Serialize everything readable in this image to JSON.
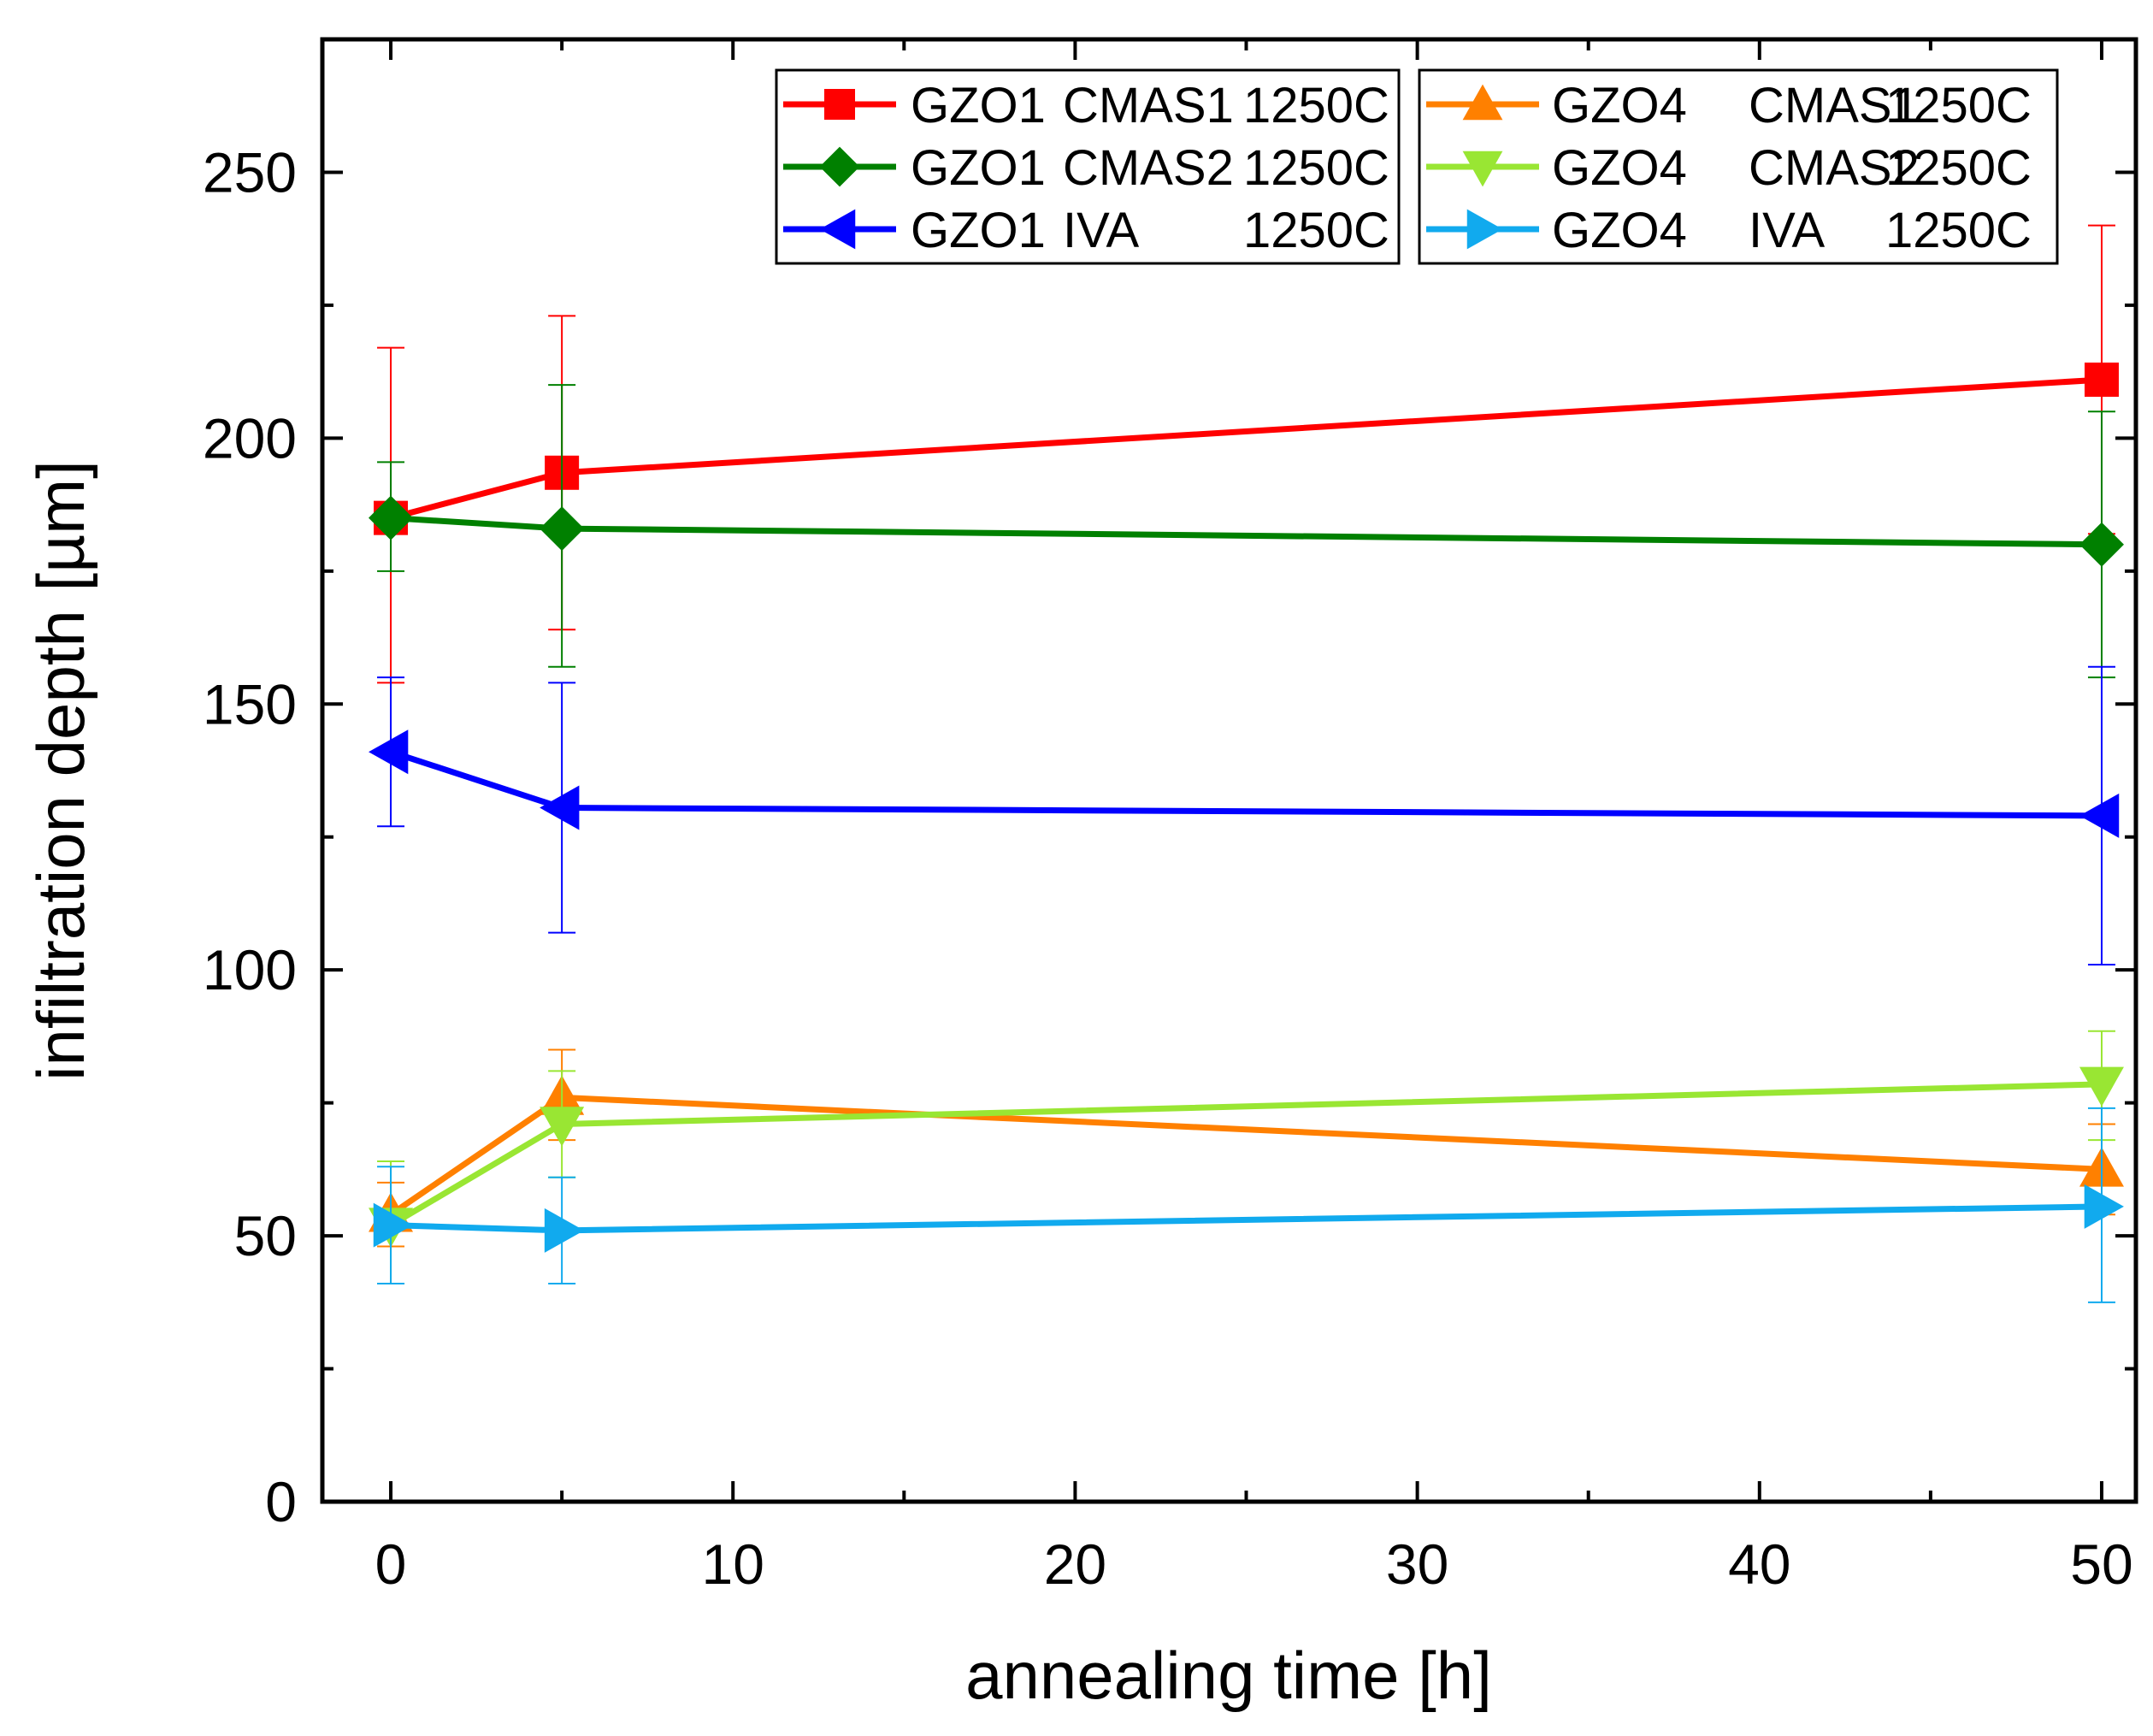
{
  "chart_data": {
    "type": "line",
    "title": "",
    "xlabel": "annealing time [h]",
    "ylabel": "infiltration depth [µm]",
    "xlim": [
      -2,
      51
    ],
    "ylim": [
      0,
      275
    ],
    "xticks": [
      0,
      10,
      20,
      30,
      40,
      50
    ],
    "xtick_labels": [
      "0",
      "10",
      "20",
      "30",
      "40",
      "50"
    ],
    "yticks": [
      0,
      50,
      100,
      150,
      200,
      250
    ],
    "ytick_labels": [
      "0",
      "50",
      "100",
      "150",
      "200",
      "250"
    ],
    "grid": false,
    "legend_position": "top-right",
    "x": [
      0,
      5,
      50
    ],
    "series": [
      {
        "name": "GZO1 CMAS1 1250C",
        "label_parts": [
          "GZO1",
          "CMAS1",
          "1250C"
        ],
        "color": "#ff0000",
        "marker": "square",
        "values": [
          185,
          193.5,
          211
        ],
        "err_low": [
          154,
          164,
          182
        ],
        "err_high": [
          217,
          223,
          240
        ]
      },
      {
        "name": "GZO1 CMAS2 1250C",
        "label_parts": [
          "GZO1",
          "CMAS2",
          "1250C"
        ],
        "color": "#008000",
        "marker": "diamond",
        "values": [
          185,
          183,
          180
        ],
        "err_low": [
          175,
          157,
          155
        ],
        "err_high": [
          195.5,
          210,
          205
        ]
      },
      {
        "name": "GZO1 IVA 1250C",
        "label_parts": [
          "GZO1",
          "IVA",
          "1250C"
        ],
        "color": "#0000ff",
        "marker": "triangle-left",
        "values": [
          141,
          130.5,
          129
        ],
        "err_low": [
          127,
          107,
          101
        ],
        "err_high": [
          155,
          154,
          157
        ]
      },
      {
        "name": "GZO4 CMAS1 1250C",
        "label_parts": [
          "GZO4",
          "CMAS1",
          "1250C"
        ],
        "color": "#ff8000",
        "marker": "triangle-up",
        "values": [
          54,
          76,
          62.5
        ],
        "err_low": [
          48,
          68,
          54
        ],
        "err_high": [
          60,
          85,
          71
        ]
      },
      {
        "name": "GZO4 CMAS2 1250C",
        "label_parts": [
          "GZO4",
          "CMAS2",
          "1250C"
        ],
        "color": "#99e633",
        "marker": "triangle-down",
        "values": [
          52,
          71,
          78.5
        ],
        "err_low": [
          41,
          61,
          68
        ],
        "err_high": [
          64,
          81,
          88.5
        ]
      },
      {
        "name": "GZO4 IVA 1250C",
        "label_parts": [
          "GZO4",
          "IVA",
          "1250C"
        ],
        "color": "#11aaee",
        "marker": "triangle-right",
        "values": [
          52,
          51,
          55.5
        ],
        "err_low": [
          41,
          41,
          37.5
        ],
        "err_high": [
          63,
          61,
          74
        ]
      }
    ]
  }
}
